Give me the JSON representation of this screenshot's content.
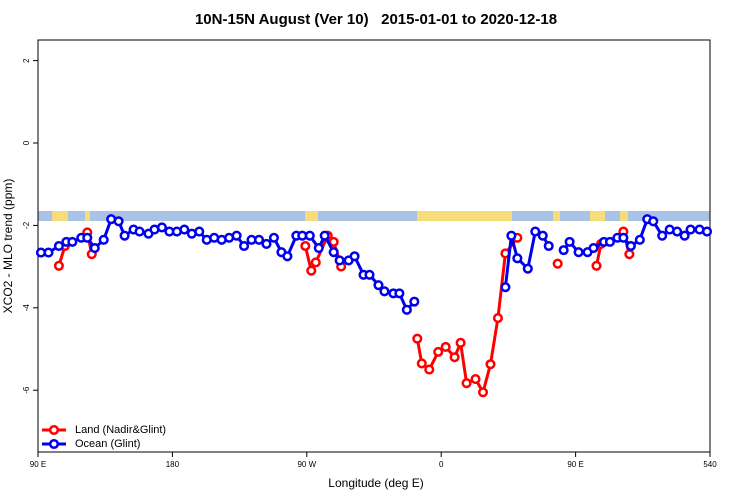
{
  "chart_data": {
    "type": "line",
    "title": "10N-15N August (Ver 10)   2015-01-01 to 2020-12-18",
    "x_label": "Longitude (deg E)",
    "y_label": "XCO2 - MLO trend (ppm)",
    "xlim": [
      90,
      540
    ],
    "ylim": [
      -7.5,
      2.5
    ],
    "xticks": [
      {
        "value": 90,
        "label": "90 E"
      },
      180,
      {
        "value": 270,
        "label": "90 W"
      },
      {
        "value": 360,
        "label": "0"
      },
      {
        "value": 450,
        "label": "90 E"
      },
      540
    ],
    "yticks": [
      -6,
      -4,
      -2,
      0,
      2
    ],
    "legend": "bottom-left",
    "series": [
      {
        "name": "Land (Nadir&Glint)",
        "color": "#ff0000",
        "x": [
          104,
          108,
          115,
          123,
          126,
          200,
          269,
          273,
          276,
          284,
          288,
          293,
          318,
          344,
          347,
          352,
          358,
          363,
          369,
          373,
          377,
          383,
          388,
          393,
          398,
          403,
          411,
          425,
          438,
          450,
          464,
          467,
          475,
          482,
          486
        ],
        "values": [
          -2.98,
          -2.5,
          null,
          -2.17,
          -2.7,
          null,
          -2.5,
          -3.1,
          -2.9,
          -2.25,
          -2.4,
          -3.0,
          null,
          -4.75,
          -5.35,
          -5.5,
          -5.07,
          -4.95,
          -5.2,
          -4.85,
          -5.83,
          -5.73,
          -6.05,
          -5.37,
          -4.25,
          -2.68,
          -2.3,
          null,
          -2.93,
          null,
          -2.98,
          -2.45,
          null,
          -2.15,
          -2.7
        ]
      },
      {
        "name": "Ocean (Glint)",
        "color": "#0000ee",
        "x": [
          92,
          97,
          104,
          109,
          113,
          119,
          123,
          128,
          134,
          139,
          144,
          148,
          154,
          158,
          164,
          168,
          173,
          178,
          183,
          188,
          193,
          198,
          203,
          208,
          213,
          218,
          223,
          228,
          233,
          238,
          243,
          248,
          253,
          257,
          263,
          267,
          272,
          278,
          282,
          288,
          292,
          298,
          302,
          308,
          312,
          318,
          322,
          328,
          332,
          337,
          342,
          372,
          403,
          407,
          411,
          418,
          423,
          428,
          432,
          437,
          442,
          446,
          452,
          458,
          462,
          469,
          473,
          478,
          482,
          487,
          493,
          498,
          502,
          508,
          513,
          518,
          523,
          527,
          533,
          538
        ],
        "values": [
          -2.66,
          -2.66,
          -2.5,
          -2.4,
          -2.4,
          -2.3,
          -2.3,
          -2.55,
          -2.35,
          -1.85,
          -1.9,
          -2.25,
          -2.1,
          -2.15,
          -2.2,
          -2.1,
          -2.05,
          -2.15,
          -2.15,
          -2.1,
          -2.2,
          -2.15,
          -2.35,
          -2.3,
          -2.35,
          -2.3,
          -2.25,
          -2.5,
          -2.35,
          -2.35,
          -2.45,
          -2.3,
          -2.65,
          -2.75,
          -2.25,
          -2.25,
          -2.25,
          -2.55,
          -2.25,
          -2.65,
          -2.85,
          -2.85,
          -2.75,
          -3.2,
          -3.2,
          -3.45,
          -3.6,
          -3.65,
          -3.65,
          -4.05,
          -3.85,
          null,
          -3.5,
          -2.25,
          -2.8,
          -3.05,
          -2.15,
          -2.25,
          -2.5,
          null,
          -2.6,
          -2.4,
          -2.65,
          -2.65,
          -2.55,
          -2.4,
          -2.4,
          -2.3,
          -2.3,
          -2.5,
          -2.35,
          -1.85,
          -1.9,
          -2.25,
          -2.1,
          -2.15,
          -2.25,
          -2.1,
          -2.1,
          -2.15
        ]
      }
    ]
  }
}
